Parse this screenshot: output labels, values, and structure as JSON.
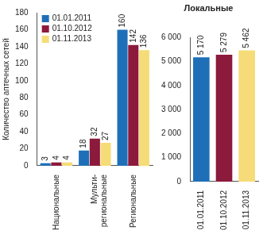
{
  "chart_data": [
    {
      "type": "bar",
      "y_label": "Количество аптечных сетей",
      "categories": [
        "Национальные",
        "Мульти-региональные",
        "Региональные"
      ],
      "series": [
        {
          "name": "01.01.2011",
          "color": "#1f6fb8",
          "values": [
            3,
            18,
            160
          ]
        },
        {
          "name": "01.10.2012",
          "color": "#8c1a3c",
          "values": [
            4,
            32,
            142
          ]
        },
        {
          "name": "01.11.2013",
          "color": "#f6dc78",
          "values": [
            4,
            27,
            136
          ]
        }
      ],
      "ylim": [
        0,
        180
      ],
      "yticks": [
        0,
        20,
        40,
        60,
        80,
        100,
        120,
        140,
        160,
        180
      ],
      "grid": false,
      "legend": "upper left",
      "data_labels": true
    },
    {
      "type": "bar",
      "title": "Локальные",
      "categories": [
        "01.01.2011",
        "01.10.2012",
        "01.11.2013"
      ],
      "values": [
        5170,
        5279,
        5462
      ],
      "value_labels": [
        "5 170",
        "5 279",
        "5 462"
      ],
      "colors": [
        "#1f6fb8",
        "#8c1a3c",
        "#f6dc78"
      ],
      "ylim": [
        0,
        6000
      ],
      "yticks": [
        0,
        {
          "value": 1000,
          "label": "1 000"
        },
        {
          "value": 2000,
          "label": "2 000"
        },
        {
          "value": 3000,
          "label": "3 000"
        },
        {
          "value": 4000,
          "label": "4 000"
        },
        {
          "value": 5000,
          "label": "5 000"
        },
        {
          "value": 6000,
          "label": "6 000"
        }
      ],
      "grid": false,
      "data_labels": true
    }
  ]
}
